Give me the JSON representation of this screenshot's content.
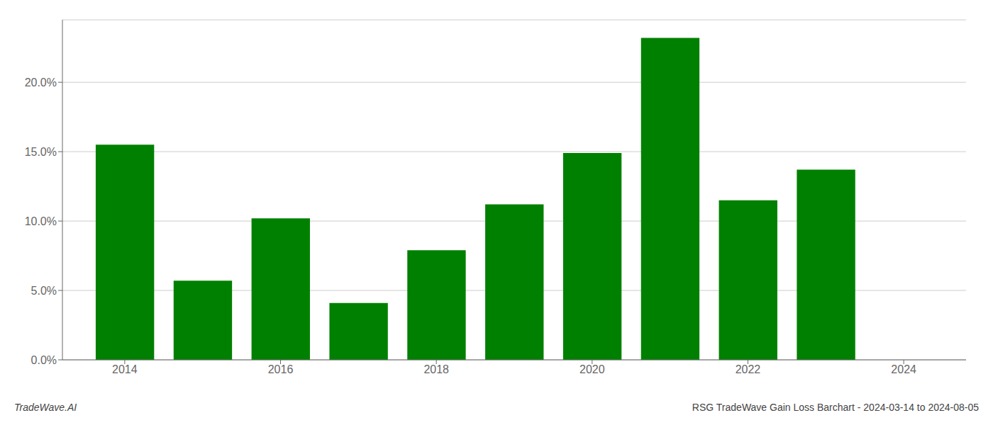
{
  "chart_data": {
    "type": "bar",
    "x": [
      2014,
      2015,
      2016,
      2017,
      2018,
      2019,
      2020,
      2021,
      2022,
      2023
    ],
    "values": [
      0.155,
      0.057,
      0.102,
      0.041,
      0.079,
      0.112,
      0.149,
      0.232,
      0.115,
      0.137
    ],
    "color": "#008000",
    "xlim": [
      2013.2,
      2024.8
    ],
    "xticks": [
      2014,
      2016,
      2018,
      2020,
      2022,
      2024
    ],
    "ylim": [
      0,
      0.245
    ],
    "yticks": [
      {
        "value": 0.0,
        "label": "0.0%"
      },
      {
        "value": 0.05,
        "label": "5.0%"
      },
      {
        "value": 0.1,
        "label": "10.0%"
      },
      {
        "value": 0.15,
        "label": "15.0%"
      },
      {
        "value": 0.2,
        "label": "20.0%"
      }
    ],
    "grid": true,
    "annotations": [
      "TradeWave.AI",
      "RSG TradeWave Gain Loss Barchart - 2024-03-14 to 2024-08-05"
    ]
  }
}
